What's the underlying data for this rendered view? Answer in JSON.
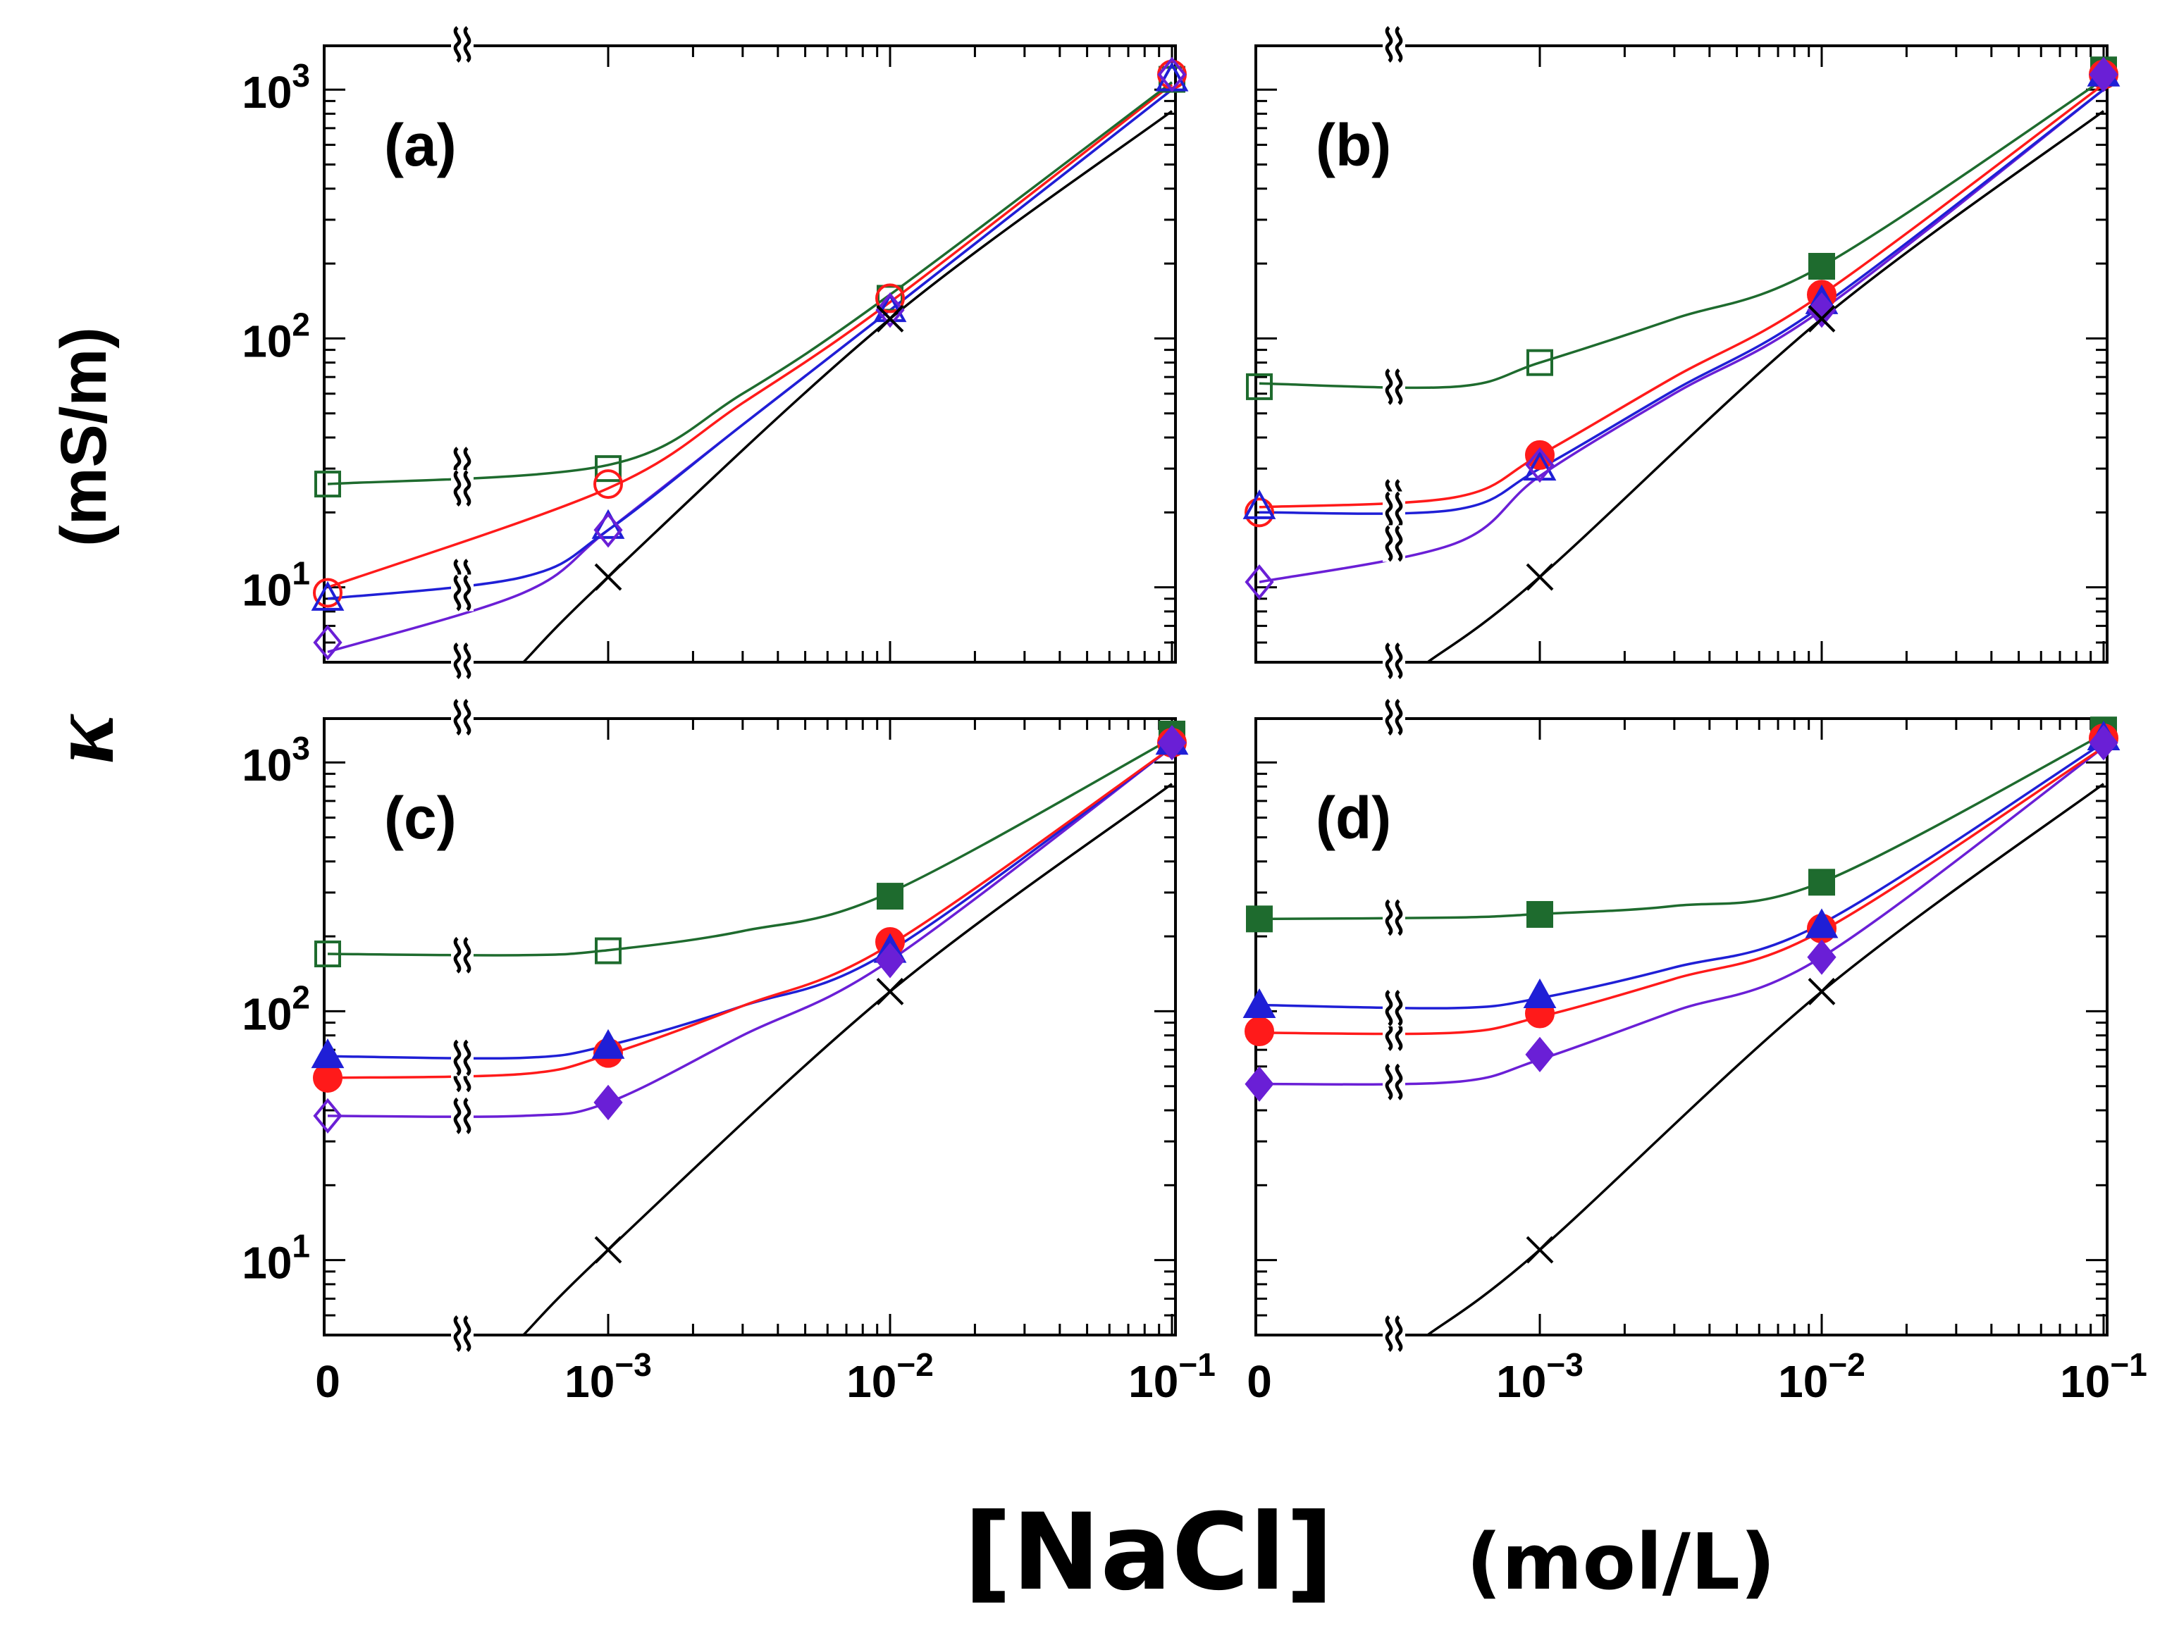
{
  "figure": {
    "ylabel_symbol": "κ",
    "ylabel_unit": "(mS/m)",
    "xlabel_main": "[NaCl]",
    "xlabel_unit": "(mol/L)"
  },
  "axes": {
    "x_ticks": [
      {
        "value": 0,
        "base": "0",
        "exp": ""
      },
      {
        "value": 0.001,
        "base": "10",
        "exp": "−3"
      },
      {
        "value": 0.01,
        "base": "10",
        "exp": "−2"
      },
      {
        "value": 0.1,
        "base": "10",
        "exp": "−1"
      }
    ],
    "y_ticks": [
      {
        "value": 10,
        "base": "10",
        "exp": "1"
      },
      {
        "value": 100,
        "base": "10",
        "exp": "2"
      },
      {
        "value": 1000,
        "base": "10",
        "exp": "3"
      }
    ],
    "break_symbol": "≀≀"
  },
  "colors": {
    "green": "#1e6b2e",
    "red": "#ff1a1a",
    "blue": "#1f1fd6",
    "purple": "#6a1fd6",
    "black": "#000000"
  },
  "chart_data": [
    {
      "type": "scatter",
      "panel": "(a)",
      "xscale": "broken-log (0 then 10^-3 to 10^-1)",
      "yscale": "log",
      "ylim": [
        5,
        1500
      ],
      "series": [
        {
          "name": "green",
          "marker": "square",
          "filled": [
            false,
            false,
            false,
            false
          ],
          "x": [
            0,
            0.001,
            0.01,
            0.1
          ],
          "y": [
            26,
            30,
            145,
            1100
          ]
        },
        {
          "name": "red",
          "marker": "circle",
          "filled": [
            false,
            false,
            false,
            false
          ],
          "x": [
            0,
            0.001,
            0.01,
            0.1
          ],
          "y": [
            9.5,
            26,
            145,
            1150
          ]
        },
        {
          "name": "blue",
          "marker": "triangle",
          "filled": [
            false,
            false,
            false,
            false
          ],
          "x": [
            0,
            0.001,
            0.01,
            0.1
          ],
          "y": [
            9,
            17.5,
            130,
            1100
          ]
        },
        {
          "name": "purple",
          "marker": "diamond",
          "filled": [
            false,
            false,
            false,
            false
          ],
          "x": [
            0,
            0.001,
            0.01,
            0.1
          ],
          "y": [
            6,
            17,
            130,
            1150
          ]
        },
        {
          "name": "black",
          "marker": "x",
          "filled": [
            false,
            false
          ],
          "x": [
            0.001,
            0.01
          ],
          "y": [
            11,
            120
          ]
        }
      ],
      "curves": {
        "green": [
          [
            0,
            26
          ],
          [
            0.001,
            31
          ],
          [
            0.003,
            60
          ],
          [
            0.01,
            150
          ],
          [
            0.1,
            1070
          ]
        ],
        "red": [
          [
            0,
            10
          ],
          [
            0.001,
            25
          ],
          [
            0.003,
            55
          ],
          [
            0.01,
            140
          ],
          [
            0.1,
            1050
          ]
        ],
        "blue": [
          [
            0,
            9
          ],
          [
            0.0005,
            11
          ],
          [
            0.001,
            17
          ],
          [
            0.003,
            45
          ],
          [
            0.01,
            130
          ],
          [
            0.1,
            1000
          ]
        ],
        "purple": [
          [
            0,
            5.5
          ],
          [
            0.0005,
            9.5
          ],
          [
            0.001,
            17
          ],
          [
            0.003,
            45
          ],
          [
            0.01,
            130
          ],
          [
            0.1,
            1000
          ]
        ],
        "black": [
          [
            0.0005,
            5
          ],
          [
            0.001,
            11
          ],
          [
            0.01,
            120
          ],
          [
            0.1,
            820
          ]
        ]
      }
    },
    {
      "type": "scatter",
      "panel": "(b)",
      "xscale": "broken-log (0 then 10^-3 to 10^-1)",
      "yscale": "log",
      "ylim": [
        5,
        1500
      ],
      "series": [
        {
          "name": "green",
          "marker": "square",
          "filled": [
            false,
            false,
            true,
            true
          ],
          "x": [
            0,
            0.001,
            0.01,
            0.1
          ],
          "y": [
            64,
            80,
            195,
            1200
          ]
        },
        {
          "name": "red",
          "marker": "circle",
          "filled": [
            false,
            true,
            true,
            true
          ],
          "x": [
            0,
            0.001,
            0.01,
            0.1
          ],
          "y": [
            20,
            34,
            150,
            1150
          ]
        },
        {
          "name": "blue",
          "marker": "triangle",
          "filled": [
            false,
            false,
            true,
            true
          ],
          "x": [
            0,
            0.001,
            0.01,
            0.1
          ],
          "y": [
            21,
            30,
            140,
            1150
          ]
        },
        {
          "name": "purple",
          "marker": "diamond",
          "filled": [
            false,
            false,
            true,
            true
          ],
          "x": [
            0,
            0.001,
            0.01,
            0.1
          ],
          "y": [
            10.5,
            31,
            130,
            1150
          ]
        },
        {
          "name": "black",
          "marker": "x",
          "filled": [
            false,
            false
          ],
          "x": [
            0.001,
            0.01
          ],
          "y": [
            11,
            120
          ]
        }
      ],
      "curves": {
        "green": [
          [
            0,
            66
          ],
          [
            0.0005,
            64
          ],
          [
            0.001,
            80
          ],
          [
            0.003,
            120
          ],
          [
            0.01,
            195
          ],
          [
            0.1,
            1100
          ]
        ],
        "red": [
          [
            0,
            21
          ],
          [
            0.0005,
            23
          ],
          [
            0.001,
            34
          ],
          [
            0.003,
            70
          ],
          [
            0.01,
            150
          ],
          [
            0.1,
            1050
          ]
        ],
        "blue": [
          [
            0,
            20
          ],
          [
            0.0005,
            20.5
          ],
          [
            0.001,
            30
          ],
          [
            0.003,
            62
          ],
          [
            0.01,
            135
          ],
          [
            0.1,
            1000
          ]
        ],
        "purple": [
          [
            0,
            10.5
          ],
          [
            0.0005,
            15
          ],
          [
            0.001,
            28
          ],
          [
            0.003,
            60
          ],
          [
            0.01,
            130
          ],
          [
            0.1,
            1000
          ]
        ],
        "black": [
          [
            0.0004,
            5
          ],
          [
            0.001,
            11
          ],
          [
            0.01,
            120
          ],
          [
            0.1,
            820
          ]
        ]
      }
    },
    {
      "type": "scatter",
      "panel": "(c)",
      "xscale": "broken-log (0 then 10^-3 to 10^-1)",
      "yscale": "log",
      "ylim": [
        5,
        1500
      ],
      "series": [
        {
          "name": "green",
          "marker": "square",
          "filled": [
            false,
            false,
            true,
            true
          ],
          "x": [
            0,
            0.001,
            0.01,
            0.1
          ],
          "y": [
            170,
            175,
            290,
            1300
          ]
        },
        {
          "name": "red",
          "marker": "circle",
          "filled": [
            true,
            true,
            true,
            true
          ],
          "x": [
            0,
            0.001,
            0.01,
            0.1
          ],
          "y": [
            54,
            68,
            190,
            1200
          ]
        },
        {
          "name": "blue",
          "marker": "triangle",
          "filled": [
            true,
            true,
            true,
            true
          ],
          "x": [
            0,
            0.001,
            0.01,
            0.1
          ],
          "y": [
            66,
            72,
            175,
            1200
          ]
        },
        {
          "name": "purple",
          "marker": "diamond",
          "filled": [
            false,
            true,
            true,
            true
          ],
          "x": [
            0,
            0.001,
            0.01,
            0.1
          ],
          "y": [
            38,
            43,
            160,
            1200
          ]
        },
        {
          "name": "black",
          "marker": "x",
          "filled": [
            false,
            false
          ],
          "x": [
            0.001,
            0.01
          ],
          "y": [
            11,
            120
          ]
        }
      ],
      "curves": {
        "green": [
          [
            0,
            170
          ],
          [
            0.0005,
            168
          ],
          [
            0.001,
            176
          ],
          [
            0.003,
            210
          ],
          [
            0.01,
            300
          ],
          [
            0.1,
            1250
          ]
        ],
        "red": [
          [
            0,
            54
          ],
          [
            0.0005,
            56
          ],
          [
            0.001,
            67
          ],
          [
            0.003,
            105
          ],
          [
            0.01,
            185
          ],
          [
            0.1,
            1150
          ]
        ],
        "blue": [
          [
            0,
            66
          ],
          [
            0.0005,
            65
          ],
          [
            0.001,
            73
          ],
          [
            0.003,
            105
          ],
          [
            0.01,
            175
          ],
          [
            0.1,
            1150
          ]
        ],
        "purple": [
          [
            0,
            38
          ],
          [
            0.0005,
            38
          ],
          [
            0.001,
            43
          ],
          [
            0.003,
            80
          ],
          [
            0.01,
            160
          ],
          [
            0.1,
            1150
          ]
        ],
        "black": [
          [
            0.0005,
            5
          ],
          [
            0.001,
            11
          ],
          [
            0.01,
            120
          ],
          [
            0.1,
            820
          ]
        ]
      }
    },
    {
      "type": "scatter",
      "panel": "(d)",
      "xscale": "broken-log (0 then 10^-3 to 10^-1)",
      "yscale": "log",
      "ylim": [
        5,
        1500
      ],
      "series": [
        {
          "name": "green",
          "marker": "square",
          "filled": [
            true,
            true,
            true,
            true
          ],
          "x": [
            0,
            0.001,
            0.01,
            0.1
          ],
          "y": [
            235,
            245,
            330,
            1350
          ]
        },
        {
          "name": "red",
          "marker": "circle",
          "filled": [
            true,
            true,
            true,
            true
          ],
          "x": [
            0,
            0.001,
            0.01,
            0.1
          ],
          "y": [
            83,
            98,
            215,
            1250
          ]
        },
        {
          "name": "blue",
          "marker": "triangle",
          "filled": [
            true,
            true,
            true,
            true
          ],
          "x": [
            0,
            0.001,
            0.01,
            0.1
          ],
          "y": [
            105,
            115,
            220,
            1250
          ]
        },
        {
          "name": "purple",
          "marker": "diamond",
          "filled": [
            true,
            true,
            true,
            true
          ],
          "x": [
            0,
            0.001,
            0.01,
            0.1
          ],
          "y": [
            51,
            67,
            165,
            1200
          ]
        },
        {
          "name": "black",
          "marker": "x",
          "filled": [
            false,
            false
          ],
          "x": [
            0.001,
            0.01
          ],
          "y": [
            11,
            120
          ]
        }
      ],
      "curves": {
        "green": [
          [
            0,
            235
          ],
          [
            0.0005,
            238
          ],
          [
            0.001,
            246
          ],
          [
            0.003,
            265
          ],
          [
            0.01,
            330
          ],
          [
            0.1,
            1300
          ]
        ],
        "red": [
          [
            0,
            82
          ],
          [
            0.0005,
            82
          ],
          [
            0.001,
            95
          ],
          [
            0.003,
            135
          ],
          [
            0.01,
            210
          ],
          [
            0.1,
            1150
          ]
        ],
        "blue": [
          [
            0,
            106
          ],
          [
            0.0005,
            103
          ],
          [
            0.001,
            113
          ],
          [
            0.003,
            150
          ],
          [
            0.01,
            225
          ],
          [
            0.1,
            1200
          ]
        ],
        "purple": [
          [
            0,
            51
          ],
          [
            0.0005,
            52
          ],
          [
            0.001,
            64
          ],
          [
            0.003,
            100
          ],
          [
            0.01,
            165
          ],
          [
            0.1,
            1150
          ]
        ],
        "black": [
          [
            0.0004,
            5
          ],
          [
            0.001,
            11
          ],
          [
            0.01,
            120
          ],
          [
            0.1,
            820
          ]
        ]
      }
    }
  ]
}
